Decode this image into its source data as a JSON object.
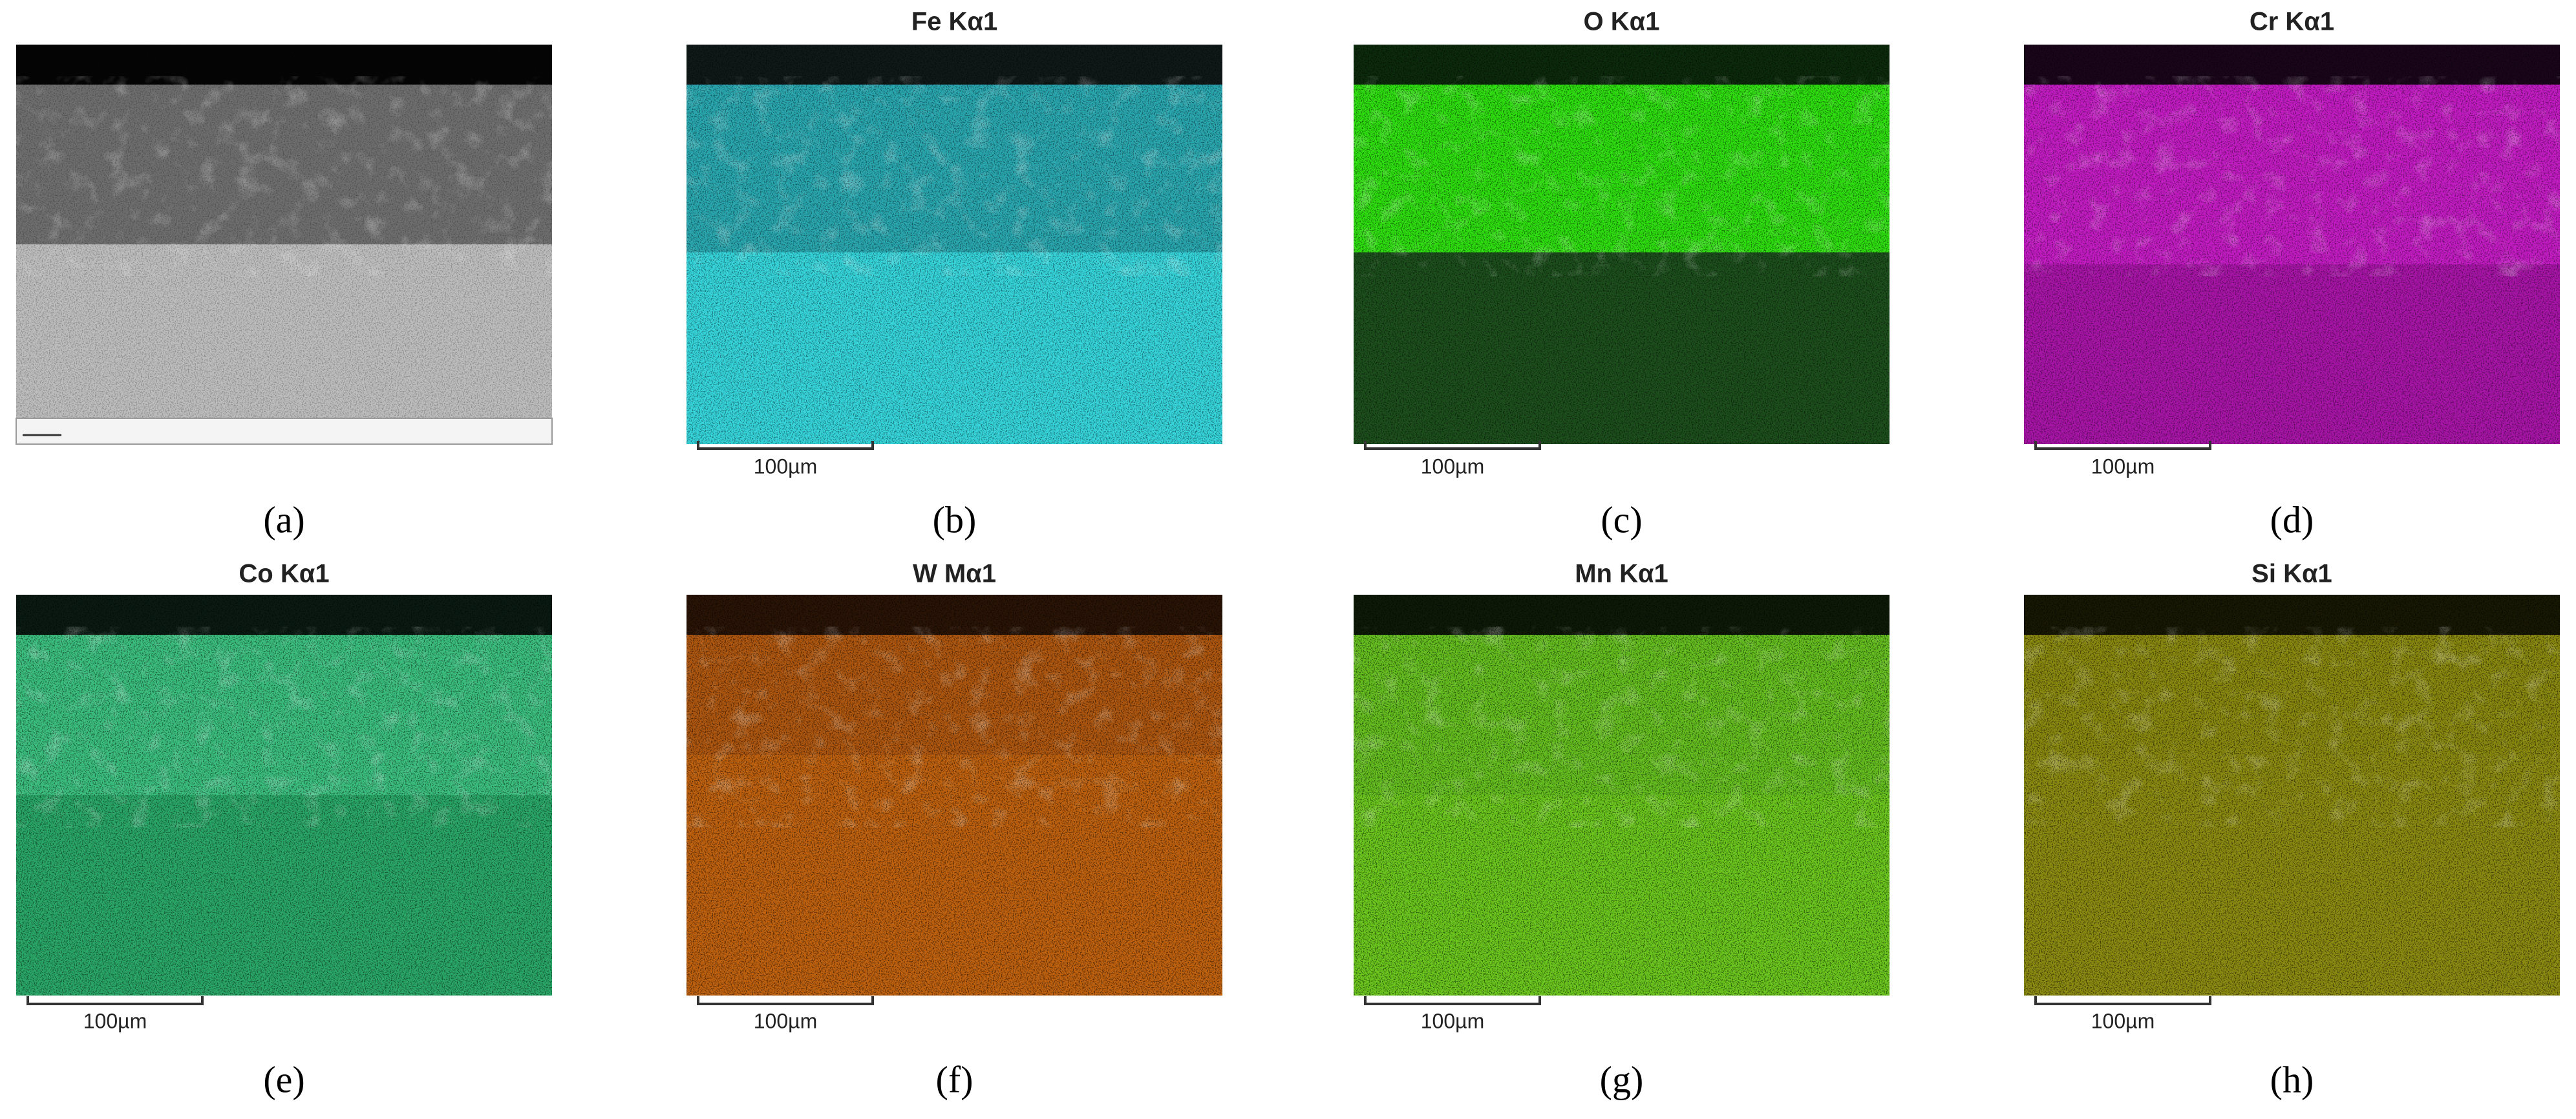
{
  "panels": [
    {
      "label": "(a)"
    },
    {
      "title": "Fe Kα1",
      "scale_bar": "100µm",
      "label": "(b)"
    },
    {
      "title": "O Kα1",
      "scale_bar": "100µm",
      "label": "(c)"
    },
    {
      "title": "Cr Kα1",
      "scale_bar": "100µm",
      "label": "(d)"
    },
    {
      "title": "Co Kα1",
      "scale_bar": "100µm",
      "label": "(e)"
    },
    {
      "title": "W Mα1",
      "scale_bar": "100µm",
      "label": "(f)"
    },
    {
      "title": "Mn Kα1",
      "scale_bar": "100µm",
      "label": "(g)"
    },
    {
      "title": "Si Kα1",
      "scale_bar": "100µm",
      "label": "(h)"
    }
  ]
}
